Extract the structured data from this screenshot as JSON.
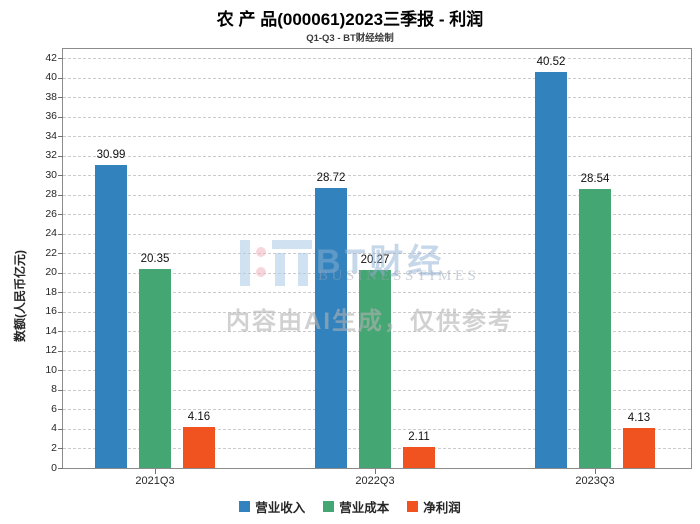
{
  "title": "农 产 品(000061)2023三季报 - 利润",
  "subtitle": "Q1-Q3 - BT财经绘制",
  "watermark": {
    "logo_text": "BT财经",
    "logo_subtext": "BUSINESSTIMES",
    "disclaimer": "内容由AI生成，仅供参考"
  },
  "chart_data": {
    "type": "bar",
    "title": "农 产 品(000061)2023三季报 - 利润",
    "subtitle": "Q1-Q3 - BT财经绘制",
    "xlabel": "",
    "ylabel": "数额(人民币亿元)",
    "categories": [
      "2021Q3",
      "2022Q3",
      "2023Q3"
    ],
    "series": [
      {
        "name": "营业收入",
        "color": "#3282bd",
        "values": [
          30.99,
          28.72,
          40.52
        ]
      },
      {
        "name": "营业成本",
        "color": "#44a673",
        "values": [
          20.35,
          20.27,
          28.54
        ]
      },
      {
        "name": "净利润",
        "color": "#f0531f",
        "values": [
          4.16,
          2.11,
          4.13
        ]
      }
    ],
    "ylim": [
      0,
      42
    ],
    "ytick_step": 2,
    "grid": "horizontal-dashed",
    "legend_position": "bottom"
  }
}
